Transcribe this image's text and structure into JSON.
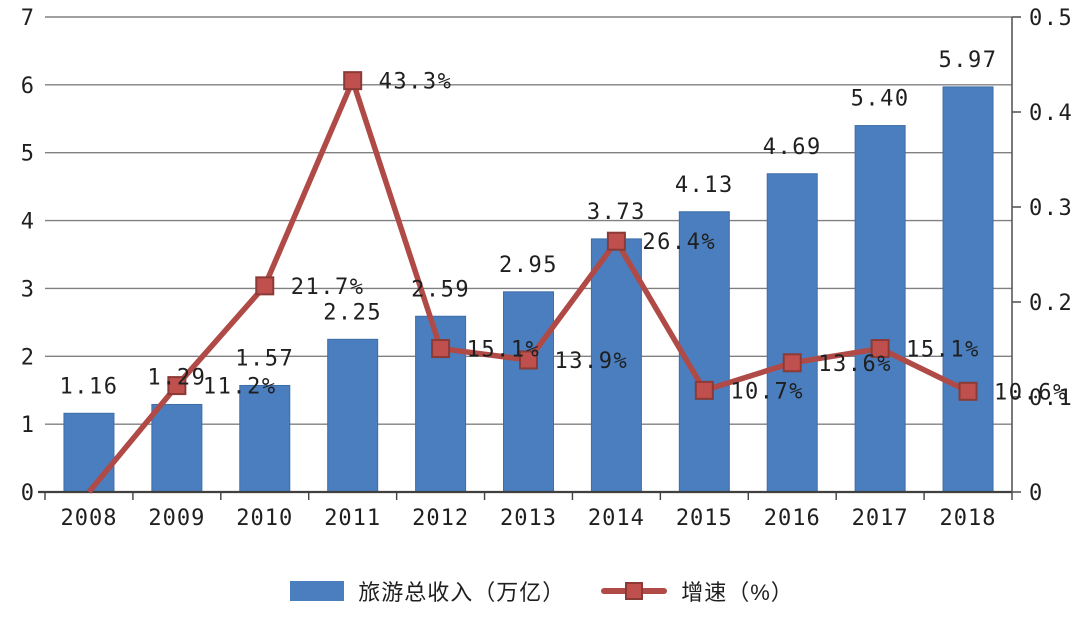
{
  "chart_data": {
    "type": "bar",
    "subtype": "bar-line-combo",
    "title": "",
    "categories": [
      "2008",
      "2009",
      "2010",
      "2011",
      "2012",
      "2013",
      "2014",
      "2015",
      "2016",
      "2017",
      "2018"
    ],
    "series": [
      {
        "name": "旅游总收入（万亿）",
        "type": "bar",
        "axis": "left",
        "values": [
          1.16,
          1.29,
          1.57,
          2.25,
          2.59,
          2.95,
          3.73,
          4.13,
          4.69,
          5.4,
          5.97
        ],
        "labels": [
          "1.16",
          "1.29",
          "1.57",
          "2.25",
          "2.59",
          "2.95",
          "3.73",
          "4.13",
          "4.69",
          "5.40",
          "5.97"
        ],
        "color": "#4a7ebe",
        "edge_color": "#3d6ea9"
      },
      {
        "name": "增速（%）",
        "type": "line",
        "axis": "right",
        "values": [
          0,
          0.112,
          0.217,
          0.433,
          0.151,
          0.139,
          0.264,
          0.107,
          0.136,
          0.151,
          0.106
        ],
        "labels": [
          "",
          "11.2%",
          "21.7%",
          "43.3%",
          "15.1%",
          "13.9%",
          "26.4%",
          "10.7%",
          "13.6%",
          "15.1%",
          "10.6%"
        ],
        "color": "#b04a47",
        "marker_color": "#c0504d",
        "marker_edge_color": "#8b3a36"
      }
    ],
    "left_axis": {
      "min": 0,
      "max": 7,
      "ticks": [
        "0",
        "1",
        "2",
        "3",
        "4",
        "5",
        "6",
        "7"
      ]
    },
    "right_axis": {
      "min": 0,
      "max": 0.5,
      "ticks": [
        "0",
        "0.1",
        "0.2",
        "0.3",
        "0.4",
        "0.5"
      ]
    },
    "grid": true,
    "grid_color": "#808080",
    "axis_line_color": "#404040",
    "text_color": "#1f1f1f",
    "legend_position": "bottom"
  }
}
